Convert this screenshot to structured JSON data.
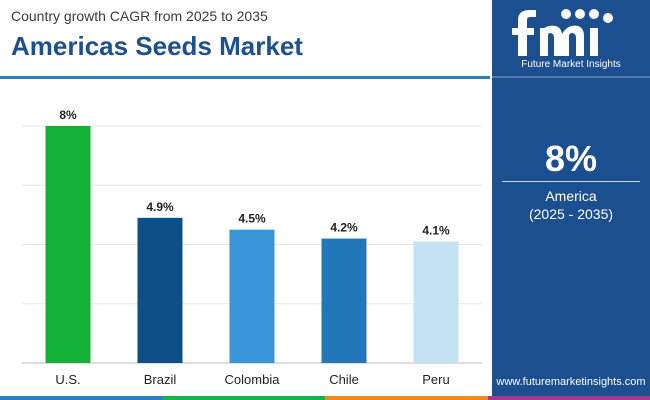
{
  "header": {
    "subtitle": "Country growth CAGR from 2025 to 2035",
    "title": "Americas Seeds Market"
  },
  "chart_data": {
    "type": "bar",
    "categories": [
      "U.S.",
      "Brazil",
      "Colombia",
      "Chile",
      "Peru"
    ],
    "values": [
      8,
      4.9,
      4.5,
      4.2,
      4.1
    ],
    "data_labels": [
      "8%",
      "4.9%",
      "4.5%",
      "4.2%",
      "4.1%"
    ],
    "colors": [
      "#13b135",
      "#0d4f86",
      "#3a95d8",
      "#2277b8",
      "#c5e2f4"
    ],
    "ylim": [
      0,
      8
    ],
    "grid": true,
    "legend": "none",
    "title": "",
    "xlabel": "",
    "ylabel": ""
  },
  "side_panel": {
    "logo_icon": "fmi-logo",
    "logo_name": "Future Market Insights",
    "highlight_value": "8%",
    "region": "America",
    "period": "(2025 - 2035)",
    "website": "www.futuremarketinsights.com"
  },
  "theme": {
    "panel_color": "#1b4f8f",
    "title_color": "#1d4f91",
    "footer_colors": [
      "#2c7fc2",
      "#18b34a",
      "#f08a1c",
      "#a23b8f"
    ]
  }
}
